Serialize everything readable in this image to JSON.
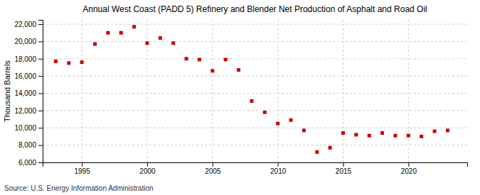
{
  "chart_data": {
    "type": "scatter",
    "title": "Annual West Coast (PADD 5) Refinery and Blender Net Production of Asphalt and Road Oil",
    "ylabel": "Thousand Barrels",
    "source": "Source: U.S. Energy Information Administration",
    "x": [
      1993,
      1994,
      1995,
      1996,
      1997,
      1998,
      1999,
      2000,
      2001,
      2002,
      2003,
      2004,
      2005,
      2006,
      2007,
      2008,
      2009,
      2010,
      2011,
      2012,
      2013,
      2014,
      2015,
      2016,
      2017,
      2018,
      2019,
      2020,
      2021,
      2022,
      2023
    ],
    "values": [
      17700,
      17500,
      17600,
      19700,
      21000,
      21000,
      21700,
      19800,
      20400,
      19800,
      18000,
      17900,
      16600,
      17900,
      16700,
      13100,
      11800,
      10500,
      10900,
      9700,
      7200,
      7700,
      9400,
      9200,
      9100,
      9400,
      9100,
      9100,
      9000,
      9600,
      9700
    ],
    "color": "#cc0000",
    "marker": "square",
    "xlim": [
      1992.0,
      2024.5
    ],
    "xticks": [
      1995,
      2000,
      2005,
      2010,
      2015,
      2020
    ],
    "ylim": [
      6000,
      22500
    ],
    "yticks": [
      {
        "value": 6000,
        "label": "6,000"
      },
      {
        "value": 8000,
        "label": "8,000"
      },
      {
        "value": 10000,
        "label": "10,000"
      },
      {
        "value": 12000,
        "label": "12,000"
      },
      {
        "value": 14000,
        "label": "14,000"
      },
      {
        "value": 16000,
        "label": "16,000"
      },
      {
        "value": 18000,
        "label": "18,000"
      },
      {
        "value": 20000,
        "label": "20,000"
      },
      {
        "value": 22000,
        "label": "22,000"
      }
    ],
    "grid": true
  }
}
